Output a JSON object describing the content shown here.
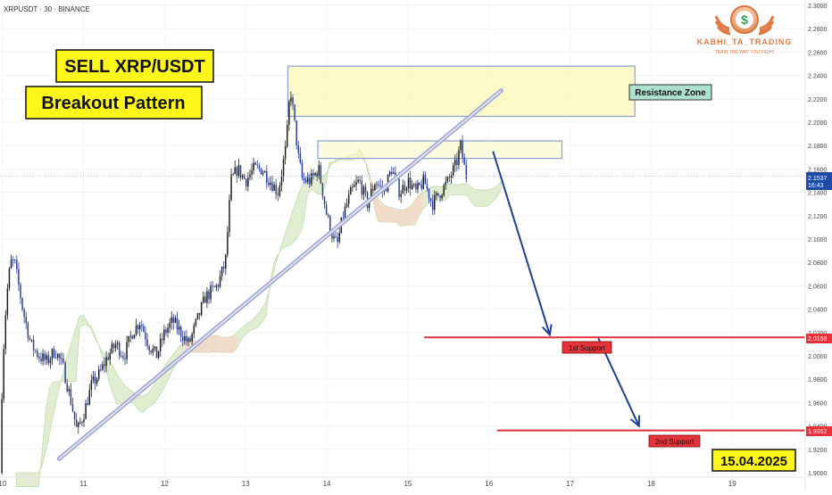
{
  "header": {
    "symbol_label": "XRPUSDT · 30 · BINANCE"
  },
  "logo": {
    "name": "KABHI_TA_TRADING",
    "tagline": "TRAIN THE WAY YOU FIGHT",
    "glyph": "$"
  },
  "annotations": {
    "title": "SELL XRP/USDT",
    "pattern": "Breakout Pattern",
    "resistance_label": "Resistance Zone",
    "support1_label": "1st Support",
    "support2_label": "2nd Support",
    "date_label": "15.04.2025"
  },
  "price_scale": {
    "current_price": "2.1537",
    "countdown": "16:43",
    "support1_price": "2.0158",
    "support2_price": "1.9362"
  },
  "colors": {
    "up": "#1e1e1e",
    "down": "#2a3f9d",
    "support_line": "#e5323b",
    "resistance_fill": "#fbf8c2",
    "resistance_border": "#8aa0d6",
    "arrow": "#1f3f99",
    "trendline": "#a3a8d8",
    "cloud_bull": "#d8e9c6",
    "cloud_bear": "#f5d6c6",
    "title_bg": "#fff719",
    "label_red": "#e5323b"
  },
  "chart_data": {
    "type": "candlestick",
    "symbol": "XRPUSDT",
    "timeframe": "30",
    "exchange": "BINANCE",
    "x_ticks": [
      "10",
      "11",
      "12",
      "13",
      "14",
      "15",
      "16",
      "17",
      "18",
      "19"
    ],
    "x_tick_days": [
      10,
      11,
      12,
      13,
      14,
      15,
      16,
      17,
      18,
      19
    ],
    "y_ticks": [
      "2.3000",
      "2.2800",
      "2.2600",
      "2.2400",
      "2.2200",
      "2.2000",
      "2.1800",
      "2.1600",
      "2.1400",
      "2.1200",
      "2.1000",
      "2.0800",
      "2.0600",
      "2.0400",
      "2.0200",
      "2.0000",
      "1.9800",
      "1.9600",
      "1.9400",
      "1.9200",
      "1.9000"
    ],
    "ylim": [
      1.9,
      2.3
    ],
    "xlim": [
      9.97,
      19.9
    ],
    "current_price": 2.1537,
    "close_path": [
      [
        9.97,
        1.9
      ],
      [
        10.0,
        1.99
      ],
      [
        10.05,
        2.05
      ],
      [
        10.1,
        2.08
      ],
      [
        10.15,
        2.08
      ],
      [
        10.2,
        2.06
      ],
      [
        10.25,
        2.04
      ],
      [
        10.35,
        2.01
      ],
      [
        10.45,
        2.0
      ],
      [
        10.55,
        1.995
      ],
      [
        10.65,
        2.005
      ],
      [
        10.75,
        1.99
      ],
      [
        10.85,
        1.96
      ],
      [
        10.92,
        1.935
      ],
      [
        11.0,
        1.95
      ],
      [
        11.1,
        1.975
      ],
      [
        11.2,
        1.985
      ],
      [
        11.3,
        2.0
      ],
      [
        11.4,
        2.01
      ],
      [
        11.5,
        2.0
      ],
      [
        11.6,
        2.02
      ],
      [
        11.7,
        2.03
      ],
      [
        11.8,
        2.01
      ],
      [
        11.9,
        2.0
      ],
      [
        12.0,
        2.02
      ],
      [
        12.1,
        2.03
      ],
      [
        12.2,
        2.02
      ],
      [
        12.3,
        2.01
      ],
      [
        12.4,
        2.03
      ],
      [
        12.5,
        2.05
      ],
      [
        12.65,
        2.06
      ],
      [
        12.75,
        2.08
      ],
      [
        12.82,
        2.15
      ],
      [
        12.9,
        2.16
      ],
      [
        13.0,
        2.15
      ],
      [
        13.1,
        2.16
      ],
      [
        13.2,
        2.16
      ],
      [
        13.3,
        2.15
      ],
      [
        13.4,
        2.14
      ],
      [
        13.5,
        2.18
      ],
      [
        13.55,
        2.23
      ],
      [
        13.6,
        2.2
      ],
      [
        13.65,
        2.17
      ],
      [
        13.7,
        2.15
      ],
      [
        13.8,
        2.15
      ],
      [
        13.9,
        2.16
      ],
      [
        14.0,
        2.12
      ],
      [
        14.08,
        2.1
      ],
      [
        14.13,
        2.095
      ],
      [
        14.2,
        2.12
      ],
      [
        14.3,
        2.14
      ],
      [
        14.4,
        2.15
      ],
      [
        14.5,
        2.13
      ],
      [
        14.6,
        2.15
      ],
      [
        14.7,
        2.14
      ],
      [
        14.8,
        2.16
      ],
      [
        14.9,
        2.14
      ],
      [
        15.0,
        2.15
      ],
      [
        15.1,
        2.14
      ],
      [
        15.2,
        2.15
      ],
      [
        15.3,
        2.13
      ],
      [
        15.4,
        2.14
      ],
      [
        15.5,
        2.15
      ],
      [
        15.6,
        2.165
      ],
      [
        15.65,
        2.18
      ],
      [
        15.7,
        2.16
      ],
      [
        15.72,
        2.154
      ]
    ],
    "ichimoku_cloud": {
      "visible": true,
      "colors": [
        "green",
        "red"
      ]
    },
    "zones": [
      {
        "name": "Resistance Zone",
        "x": [
          13.52,
          17.8
        ],
        "y": [
          2.205,
          2.248
        ]
      },
      {
        "name": "inner resistance",
        "x": [
          13.89,
          16.9
        ],
        "y": [
          2.169,
          2.184
        ]
      }
    ],
    "support_levels": [
      {
        "name": "1st Support",
        "value": 2.0158,
        "x_start": 15.2
      },
      {
        "name": "2nd Support",
        "value": 1.9362,
        "x_start": 16.1
      }
    ],
    "trendline": {
      "from": [
        10.7,
        1.912
      ],
      "to": [
        16.15,
        2.227
      ]
    },
    "projection_arrows": [
      {
        "from": [
          16.05,
          2.175
        ],
        "to": [
          16.75,
          2.018
        ]
      },
      {
        "from": [
          17.35,
          2.015
        ],
        "to": [
          17.85,
          1.94
        ]
      }
    ],
    "date": "15.04.2025"
  }
}
